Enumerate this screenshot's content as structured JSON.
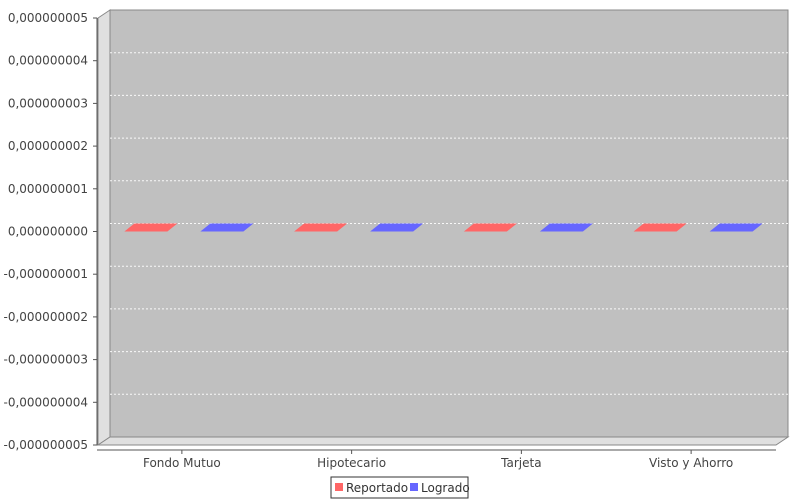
{
  "chart_data": {
    "type": "bar",
    "title": "",
    "xlabel": "",
    "ylabel": "",
    "categories": [
      "Fondo Mutuo",
      "Hipotecario",
      "Tarjeta",
      "Visto y Ahorro"
    ],
    "series": [
      {
        "name": "Reportado",
        "values": [
          0,
          0,
          0,
          0
        ]
      },
      {
        "name": "Logrado",
        "values": [
          0,
          0,
          0,
          0
        ]
      }
    ],
    "ylim": [
      -5e-09,
      5e-09
    ],
    "y_ticks": [
      5e-09,
      4e-09,
      3e-09,
      2e-09,
      1e-09,
      0,
      -1e-09,
      -2e-09,
      -3e-09,
      -4e-09,
      -5e-09
    ],
    "y_tick_labels": [
      "0,000000005",
      "0,000000004",
      "0,000000003",
      "0,000000002",
      "0,000000001",
      "0,000000000",
      "-0,000000001",
      "-0,000000002",
      "-0,000000003",
      "-0,000000004",
      "-0,000000005"
    ],
    "grid": true,
    "three_d": true,
    "legend_position": "bottom",
    "colors": {
      "Reportado": "#ff6666",
      "Logrado": "#6666ff",
      "plot_bg": "#c0c0c0",
      "wall_side": "#e0e0e0",
      "wall_floor": "#e0e0e0",
      "gridline": "#ffffff"
    }
  }
}
